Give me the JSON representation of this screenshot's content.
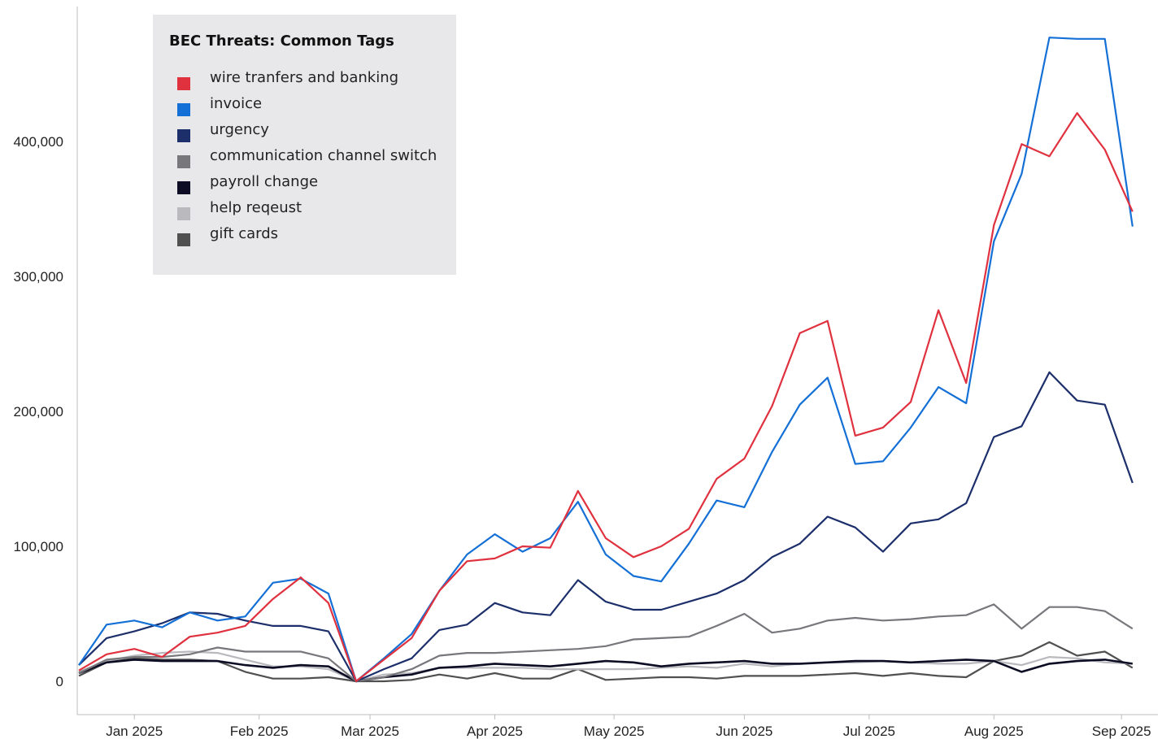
{
  "chart_data": {
    "type": "line",
    "title": "BEC Threats: Common Tags",
    "xlabel": "",
    "ylabel": "",
    "ylim": [
      0,
      480000
    ],
    "yticks": [
      0,
      100000,
      200000,
      300000,
      400000
    ],
    "ytick_labels": [
      "0",
      "100,000",
      "200,000",
      "300,000",
      "400,000"
    ],
    "xtick_labels": [
      "Jan 2025",
      "Feb 2025",
      "Mar 2025",
      "Apr 2025",
      "May 2025",
      "Jun 2025",
      "Jul 2025",
      "Aug 2025",
      "Sep 2025"
    ],
    "xtick_positions": [
      2,
      6.5,
      10.5,
      15,
      19.3,
      24,
      28.5,
      33,
      37.6
    ],
    "grid": false,
    "legend_placement": "top-left",
    "x": [
      0,
      1,
      2,
      3,
      4,
      5,
      6,
      7,
      8,
      9,
      10,
      11,
      12,
      13,
      14,
      15,
      16,
      17,
      18,
      19,
      20,
      21,
      22,
      23,
      24,
      25,
      26,
      27,
      28,
      29,
      30,
      31,
      32,
      33,
      34,
      35,
      36,
      37,
      38,
      39
    ],
    "series": [
      {
        "name": "wire tranfers and banking",
        "color": "#e0313f",
        "values": [
          8000,
          20000,
          24000,
          18000,
          33000,
          36000,
          41000,
          61000,
          77000,
          58000,
          0,
          16000,
          32000,
          67000,
          89000,
          91000,
          100000,
          99000,
          141000,
          106000,
          92000,
          100000,
          113000,
          150000,
          165000,
          204000,
          258000,
          267000,
          182000,
          188000,
          207000,
          275000,
          221000,
          338000,
          398000,
          389000,
          421000,
          394000,
          348000,
          null
        ]
      },
      {
        "name": "invoice",
        "color": "#1470d6",
        "values": [
          12000,
          42000,
          45000,
          40000,
          51000,
          45000,
          48000,
          73000,
          76000,
          65000,
          0,
          17000,
          35000,
          67000,
          94000,
          109000,
          96000,
          106000,
          133000,
          94000,
          78000,
          74000,
          102000,
          134000,
          129000,
          170000,
          205000,
          225000,
          161000,
          163000,
          188000,
          218000,
          206000,
          326000,
          376000,
          477000,
          476000,
          476000,
          337000,
          null
        ]
      },
      {
        "name": "urgency",
        "color": "#1c2f6b",
        "values": [
          12000,
          32000,
          37000,
          43000,
          51000,
          50000,
          45000,
          41000,
          41000,
          37000,
          0,
          9000,
          17000,
          38000,
          42000,
          58000,
          51000,
          49000,
          75000,
          59000,
          53000,
          53000,
          59000,
          65000,
          75000,
          92000,
          102000,
          122000,
          114000,
          96000,
          117000,
          120000,
          132000,
          181000,
          189000,
          229000,
          208000,
          205000,
          147000,
          null
        ]
      },
      {
        "name": "communication channel switch",
        "color": "#77777c",
        "values": [
          6000,
          16000,
          18000,
          18000,
          20000,
          25000,
          22000,
          22000,
          22000,
          17000,
          0,
          3000,
          9000,
          19000,
          21000,
          21000,
          22000,
          23000,
          24000,
          26000,
          31000,
          32000,
          33000,
          41000,
          50000,
          36000,
          39000,
          45000,
          47000,
          45000,
          46000,
          48000,
          49000,
          57000,
          39000,
          55000,
          55000,
          52000,
          39000,
          null
        ]
      },
      {
        "name": "payroll change",
        "color": "#0c0c24",
        "values": [
          6000,
          14000,
          16000,
          15000,
          15000,
          15000,
          12000,
          10000,
          12000,
          11000,
          0,
          3000,
          5000,
          10000,
          11000,
          13000,
          12000,
          11000,
          13000,
          15000,
          14000,
          11000,
          13000,
          14000,
          15000,
          13000,
          13000,
          14000,
          15000,
          15000,
          14000,
          15000,
          16000,
          15000,
          7000,
          13000,
          15000,
          16000,
          13000,
          null
        ]
      },
      {
        "name": "help reqeust",
        "color": "#b9b9be",
        "values": [
          7000,
          15000,
          19000,
          21000,
          22000,
          21000,
          16000,
          11000,
          11000,
          9000,
          0,
          5000,
          6000,
          10000,
          10000,
          10000,
          10000,
          9000,
          9000,
          9000,
          9000,
          10000,
          11000,
          10000,
          13000,
          11000,
          13000,
          14000,
          14000,
          15000,
          14000,
          13000,
          13000,
          15000,
          12000,
          18000,
          17000,
          14000,
          13000,
          null
        ]
      },
      {
        "name": "gift cards",
        "color": "#505050",
        "values": [
          4000,
          14000,
          17000,
          16000,
          16000,
          15000,
          7000,
          2000,
          2000,
          3000,
          0,
          0,
          1000,
          5000,
          2000,
          6000,
          2000,
          2000,
          9000,
          1000,
          2000,
          3000,
          3000,
          2000,
          4000,
          4000,
          4000,
          5000,
          6000,
          4000,
          6000,
          4000,
          3000,
          15000,
          19000,
          29000,
          19000,
          22000,
          10000,
          null
        ]
      }
    ]
  }
}
